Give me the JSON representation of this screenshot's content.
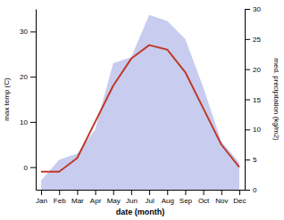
{
  "chart_data": {
    "type": "line",
    "categories": [
      "Jan",
      "Feb",
      "Mar",
      "Apr",
      "May",
      "Jun",
      "Jul",
      "Aug",
      "Sep",
      "Oct",
      "Nov",
      "Dec"
    ],
    "xlabel": "date (month)",
    "ylabel": "max temp (C)",
    "y2label": "med. precipitation (kg/m2)",
    "series": [
      {
        "type": "area",
        "axis": "y2",
        "color": "#b0b8e8",
        "values": [
          1.5,
          5,
          6,
          10,
          21,
          22,
          29,
          28,
          25,
          17,
          8,
          4.5
        ]
      },
      {
        "type": "line",
        "color": "#c0392b",
        "values": [
          -1,
          -1,
          2,
          10,
          18,
          24,
          27,
          26,
          21,
          13,
          5,
          0
        ]
      }
    ],
    "ylim": [
      -5,
      35
    ],
    "yticks": [
      0,
      10,
      20,
      30
    ],
    "y2lim": [
      0,
      30
    ],
    "y2ticks": [
      0,
      5,
      10,
      15,
      20,
      25,
      30
    ],
    "grid": false
  }
}
